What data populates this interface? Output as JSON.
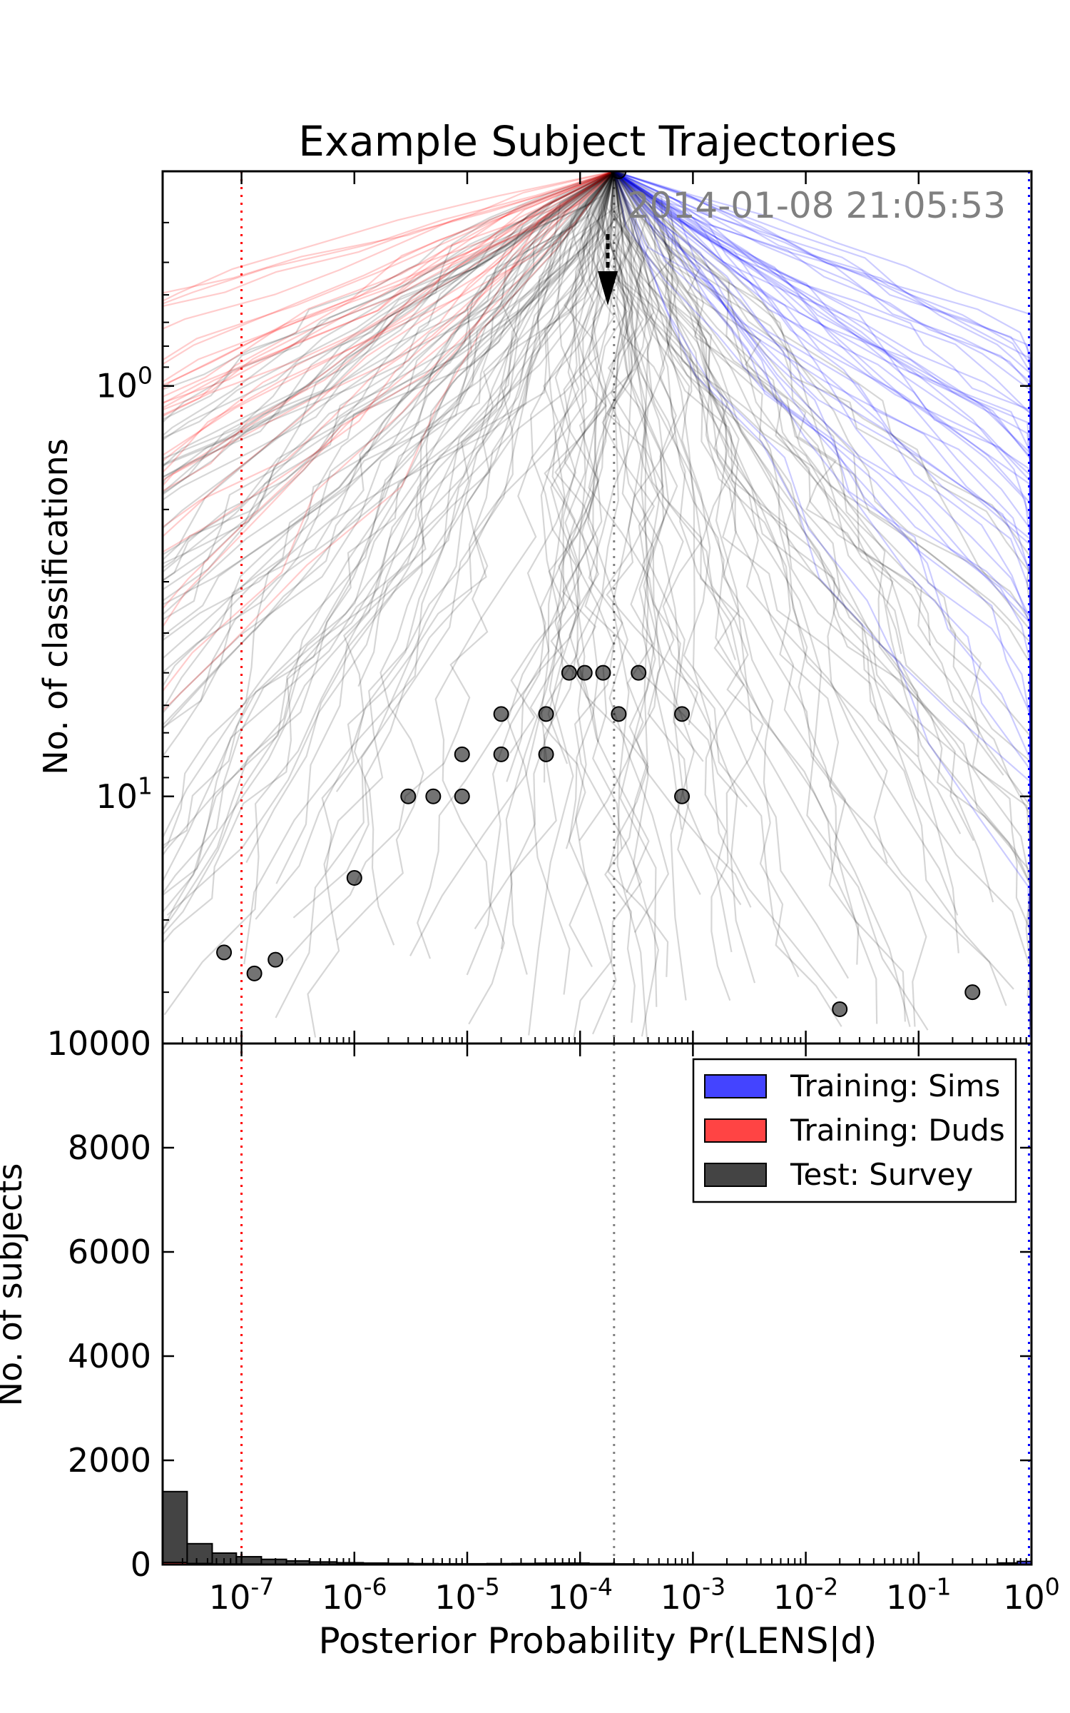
{
  "chart_data": [
    {
      "type": "line",
      "title": "Example Subject Trajectories",
      "timestamp": "2014-01-08 21:05:53",
      "ylabel": "No. of classifications",
      "x_scale": "log",
      "y_scale": "log",
      "y_inverted": true,
      "xlim": [
        2e-08,
        1.0
      ],
      "ylim": [
        0.3,
        40
      ],
      "y_ticks": [
        {
          "value": 1,
          "label": "10^0"
        },
        {
          "value": 10,
          "label": "10^1"
        }
      ],
      "vlines": [
        {
          "x": 1e-07,
          "color": "#ff0000",
          "style": "dotted"
        },
        {
          "x": 0.0002,
          "color": "#808080",
          "style": "dotted"
        },
        {
          "x": 0.95,
          "color": "#0000ff",
          "style": "dotted"
        }
      ],
      "start": {
        "x": 0.0002,
        "y": 0.3
      },
      "series": [
        {
          "color": "#000000"
        },
        {
          "color": "#ff0000"
        },
        {
          "color": "#0000ff"
        }
      ],
      "points": [
        {
          "x": 0.00022,
          "y": 0.3
        },
        {
          "x": 8e-05,
          "y": 5
        },
        {
          "x": 0.00011,
          "y": 5
        },
        {
          "x": 0.00016,
          "y": 5
        },
        {
          "x": 0.00033,
          "y": 5
        },
        {
          "x": 2e-05,
          "y": 6.3
        },
        {
          "x": 5e-05,
          "y": 6.3
        },
        {
          "x": 0.00022,
          "y": 6.3
        },
        {
          "x": 0.0008,
          "y": 6.3
        },
        {
          "x": 9e-06,
          "y": 7.9
        },
        {
          "x": 2e-05,
          "y": 7.9
        },
        {
          "x": 5e-05,
          "y": 7.9
        },
        {
          "x": 3e-06,
          "y": 10
        },
        {
          "x": 5e-06,
          "y": 10
        },
        {
          "x": 9e-06,
          "y": 10
        },
        {
          "x": 0.0008,
          "y": 10
        },
        {
          "x": 1e-06,
          "y": 15.8
        },
        {
          "x": 7e-08,
          "y": 24
        },
        {
          "x": 1.3e-07,
          "y": 27
        },
        {
          "x": 2e-07,
          "y": 25
        },
        {
          "x": 0.02,
          "y": 33
        },
        {
          "x": 0.3,
          "y": 30
        }
      ]
    },
    {
      "type": "bar",
      "xlabel": "Posterior Probability Pr(LENS|d)",
      "ylabel": "No. of subjects",
      "x_scale": "log",
      "xlim": [
        2e-08,
        1.0
      ],
      "ylim": [
        0,
        10000
      ],
      "y_ticks": [
        0,
        2000,
        4000,
        6000,
        8000,
        10000
      ],
      "x_ticks": [
        {
          "value": 1e-07,
          "label": "10^-7"
        },
        {
          "value": 1e-06,
          "label": "10^-6"
        },
        {
          "value": 1e-05,
          "label": "10^-5"
        },
        {
          "value": 0.0001,
          "label": "10^-4"
        },
        {
          "value": 0.001,
          "label": "10^-3"
        },
        {
          "value": 0.01,
          "label": "10^-2"
        },
        {
          "value": 0.1,
          "label": "10^-1"
        },
        {
          "value": 1,
          "label": "10^0"
        }
      ],
      "legend_position": "top-right",
      "series": [
        {
          "name": "Training: Sims",
          "color": "#4444ff"
        },
        {
          "name": "Training: Duds",
          "color": "#ff4444"
        },
        {
          "name": "Test: Survey",
          "color": "#444444"
        }
      ],
      "bins": [
        {
          "x0": 2e-08,
          "x1": 3.3e-08,
          "values": [
            0,
            40,
            1400
          ]
        },
        {
          "x0": 3.3e-08,
          "x1": 5.5e-08,
          "values": [
            0,
            20,
            400
          ]
        },
        {
          "x0": 5.5e-08,
          "x1": 9e-08,
          "values": [
            0,
            10,
            220
          ]
        },
        {
          "x0": 9e-08,
          "x1": 1.5e-07,
          "values": [
            0,
            10,
            150
          ]
        },
        {
          "x0": 1.5e-07,
          "x1": 2.5e-07,
          "values": [
            0,
            0,
            100
          ]
        },
        {
          "x0": 2.5e-07,
          "x1": 4e-07,
          "values": [
            0,
            0,
            70
          ]
        },
        {
          "x0": 4e-07,
          "x1": 7e-07,
          "values": [
            0,
            0,
            50
          ]
        },
        {
          "x0": 7e-07,
          "x1": 1.2e-06,
          "values": [
            0,
            0,
            35
          ]
        },
        {
          "x0": 1.2e-06,
          "x1": 2e-06,
          "values": [
            0,
            0,
            28
          ]
        },
        {
          "x0": 2e-06,
          "x1": 3.3e-06,
          "values": [
            0,
            0,
            22
          ]
        },
        {
          "x0": 3.3e-06,
          "x1": 5.5e-06,
          "values": [
            0,
            0,
            18
          ]
        },
        {
          "x0": 5.5e-06,
          "x1": 9e-06,
          "values": [
            0,
            0,
            15
          ]
        },
        {
          "x0": 9e-06,
          "x1": 1.5e-05,
          "values": [
            0,
            0,
            15
          ]
        },
        {
          "x0": 1.5e-05,
          "x1": 2.5e-05,
          "values": [
            0,
            0,
            18
          ]
        },
        {
          "x0": 2.5e-05,
          "x1": 4e-05,
          "values": [
            0,
            0,
            20
          ]
        },
        {
          "x0": 4e-05,
          "x1": 7e-05,
          "values": [
            0,
            0,
            25
          ]
        },
        {
          "x0": 7e-05,
          "x1": 0.00012,
          "values": [
            0,
            0,
            28
          ]
        },
        {
          "x0": 0.00012,
          "x1": 0.0002,
          "values": [
            0,
            0,
            20
          ]
        },
        {
          "x0": 0.0002,
          "x1": 0.00033,
          "values": [
            0,
            0,
            12
          ]
        },
        {
          "x0": 0.00033,
          "x1": 0.00055,
          "values": [
            0,
            0,
            8
          ]
        },
        {
          "x0": 0.00055,
          "x1": 0.001,
          "values": [
            0,
            0,
            5
          ]
        },
        {
          "x0": 0.001,
          "x1": 0.5,
          "values": [
            0,
            0,
            4
          ]
        },
        {
          "x0": 0.5,
          "x1": 0.75,
          "values": [
            30,
            0,
            20
          ]
        },
        {
          "x0": 0.75,
          "x1": 1.0,
          "values": [
            60,
            0,
            40
          ]
        }
      ]
    }
  ]
}
